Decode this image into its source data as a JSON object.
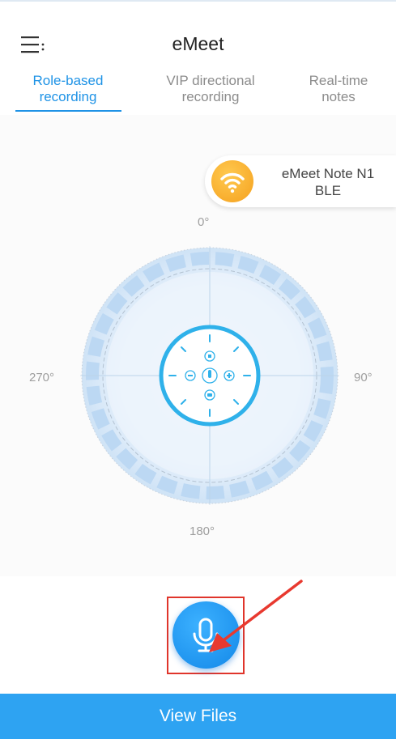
{
  "header": {
    "title": "eMeet",
    "menu_icon": "hamburger-menu-icon"
  },
  "tabs": [
    {
      "line1": "Role-based",
      "line2": "recording",
      "active": true
    },
    {
      "line1": "VIP directional",
      "line2": "recording",
      "active": false
    },
    {
      "line1": "Real-time",
      "line2": "notes",
      "active": false
    }
  ],
  "device": {
    "name_line1": "eMeet Note N1",
    "name_line2": "BLE",
    "icon": "wifi-icon"
  },
  "radar": {
    "degree_top": "0°",
    "degree_right": "90°",
    "degree_bottom": "180°",
    "degree_left": "270°"
  },
  "record_button": {
    "icon": "microphone-icon"
  },
  "footer": {
    "view_files_label": "View Files"
  },
  "colors": {
    "accent": "#1f93e6",
    "bottom_bar": "#2ea3f2",
    "highlight": "#e0352b",
    "device_icon": "#f5a11f"
  }
}
